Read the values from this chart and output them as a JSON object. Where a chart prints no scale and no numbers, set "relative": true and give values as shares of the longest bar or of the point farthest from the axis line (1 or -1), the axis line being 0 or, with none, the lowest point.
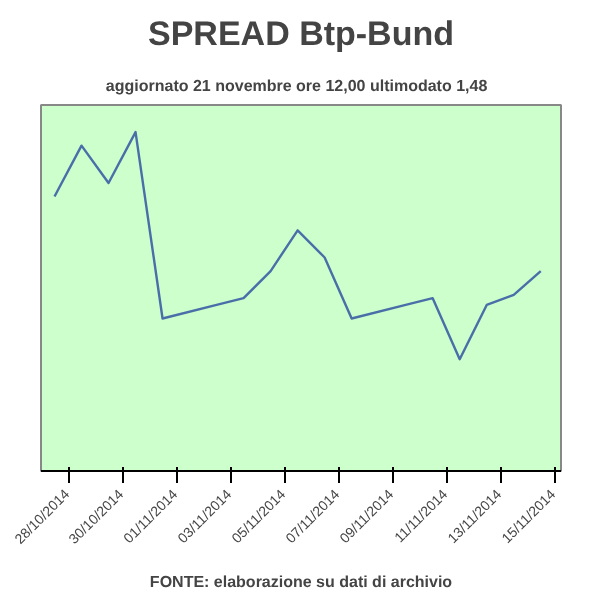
{
  "chart_data": {
    "type": "line",
    "title": "SPREAD Btp-Bund",
    "subtitle": "aggiornato 21 novembre ore 12,00  ultimodato  1,48",
    "x": [
      "2014-10-27T12:00",
      "2014-10-28T12:00",
      "2014-10-29T12:00",
      "2014-10-30T12:00",
      "2014-10-31T12:00",
      "2014-11-02T12:00",
      "2014-11-03T12:00",
      "2014-11-04T12:00",
      "2014-11-05T12:00",
      "2014-11-06T12:00",
      "2014-11-07T12:00",
      "2014-11-09T12:00",
      "2014-11-10T12:00",
      "2014-11-11T12:00",
      "2014-11-12T12:00",
      "2014-11-13T12:00",
      "2014-11-14T12:00"
    ],
    "values": [
      0.81,
      0.96,
      0.85,
      1.0,
      0.45,
      0.49,
      0.51,
      0.59,
      0.71,
      0.63,
      0.45,
      0.49,
      0.51,
      0.33,
      0.49,
      0.52,
      0.59
    ],
    "color": "#4a6ea8",
    "relative": true,
    "marker": "none",
    "grid": false,
    "xlim": [
      "2014-10-27",
      "2014-11-15T06:00"
    ],
    "xticks": [
      {
        "value": "2014-10-28",
        "label": "28/10/2014"
      },
      {
        "value": "2014-10-30",
        "label": "30/10/2014"
      },
      {
        "value": "2014-11-01",
        "label": "01/11/2014"
      },
      {
        "value": "2014-11-03",
        "label": "03/11/2014"
      },
      {
        "value": "2014-11-05",
        "label": "05/11/2014"
      },
      {
        "value": "2014-11-07",
        "label": "07/11/2014"
      },
      {
        "value": "2014-11-09",
        "label": "09/11/2014"
      },
      {
        "value": "2014-11-11",
        "label": "11/11/2014"
      },
      {
        "value": "2014-11-13",
        "label": "13/11/2014"
      },
      {
        "value": "2014-11-15",
        "label": "15/11/2014"
      }
    ],
    "annotations": [
      "FONTE: elaborazione su dati di archivio"
    ]
  }
}
